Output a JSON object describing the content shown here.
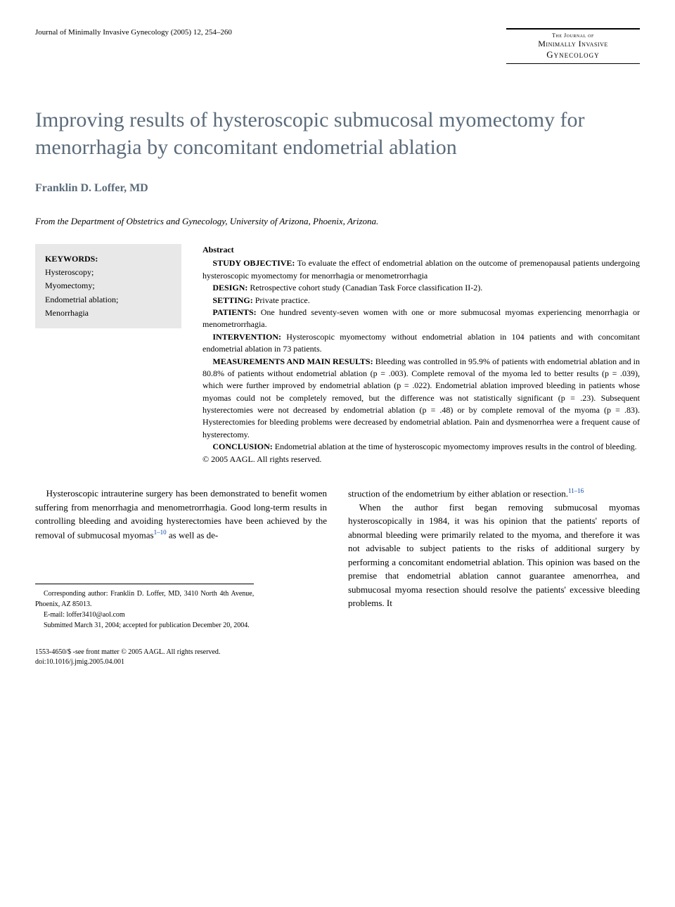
{
  "header": {
    "citation": "Journal of Minimally Invasive Gynecology (2005) 12, 254–260",
    "brand_top": "The Journal of",
    "brand_line1": "Minimally Invasive",
    "brand_line2": "Gynecology"
  },
  "title": "Improving results of hysteroscopic submucosal myomectomy for menorrhagia by concomitant endometrial ablation",
  "author": "Franklin D. Loffer, MD",
  "affiliation": "From the Department of Obstetrics and Gynecology, University of Arizona, Phoenix, Arizona.",
  "keywords": {
    "heading": "KEYWORDS:",
    "items": "Hysteroscopy;\nMyomectomy;\nEndometrial ablation;\nMenorrhagia"
  },
  "abstract": {
    "heading": "Abstract",
    "sections": [
      {
        "label": "STUDY OBJECTIVE:",
        "text": " To evaluate the effect of endometrial ablation on the outcome of premenopausal patients undergoing hysteroscopic myomectomy for menorrhagia or menometrorrhagia"
      },
      {
        "label": "DESIGN:",
        "text": " Retrospective cohort study (Canadian Task Force classification II-2)."
      },
      {
        "label": "SETTING:",
        "text": " Private practice."
      },
      {
        "label": "PATIENTS:",
        "text": " One hundred seventy-seven women with one or more submucosal myomas experiencing menorrhagia or menometrorrhagia."
      },
      {
        "label": "INTERVENTION:",
        "text": " Hysteroscopic myomectomy without endometrial ablation in 104 patients and with concomitant endometrial ablation in 73 patients."
      },
      {
        "label": "MEASUREMENTS AND MAIN RESULTS:",
        "text": " Bleeding was controlled in 95.9% of patients with endometrial ablation and in 80.8% of patients without endometrial ablation (p = .003). Complete removal of the myoma led to better results (p = .039), which were further improved by endometrial ablation (p = .022). Endometrial ablation improved bleeding in patients whose myomas could not be completely removed, but the difference was not statistically significant (p = .23). Subsequent hysterectomies were not decreased by endometrial ablation (p = .48) or by complete removal of the myoma (p = .83). Hysterectomies for bleeding problems were decreased by endometrial ablation. Pain and dysmenorrhea were a frequent cause of hysterectomy."
      },
      {
        "label": "CONCLUSION:",
        "text": " Endometrial ablation at the time of hysteroscopic myomectomy improves results in the control of bleeding."
      }
    ],
    "copyright": "© 2005 AAGL. All rights reserved."
  },
  "body": {
    "col1_p1_a": "Hysteroscopic intrauterine surgery has been demonstrated to benefit women suffering from menorrhagia and menometrorrhagia. Good long-term results in controlling bleeding and avoiding hysterectomies have been achieved by the removal of submucosal myomas",
    "col1_p1_ref": "1–10",
    "col1_p1_b": " as well as de-",
    "col2_p1_a": "struction of the endometrium by either ablation or resection.",
    "col2_p1_ref": "11–16",
    "col2_p2": "When the author first began removing submucosal myomas hysteroscopically in 1984, it was his opinion that the patients' reports of abnormal bleeding were primarily related to the myoma, and therefore it was not advisable to subject patients to the risks of additional surgery by performing a concomitant endometrial ablation. This opinion was based on the premise that endometrial ablation cannot guarantee amenorrhea, and submucosal myoma resection should resolve the patients' excessive bleeding problems. It"
  },
  "footnotes": {
    "corresponding": "Corresponding author: Franklin D. Loffer, MD, 3410 North 4th Avenue, Phoenix, AZ 85013.",
    "email": "E-mail: loffer3410@aol.com",
    "submitted": "Submitted March 31, 2004; accepted for publication December 20, 2004."
  },
  "footer": {
    "issn": "1553-4650/$ -see front matter © 2005 AAGL. All rights reserved.",
    "doi": "doi:10.1016/j.jmig.2005.04.001"
  }
}
